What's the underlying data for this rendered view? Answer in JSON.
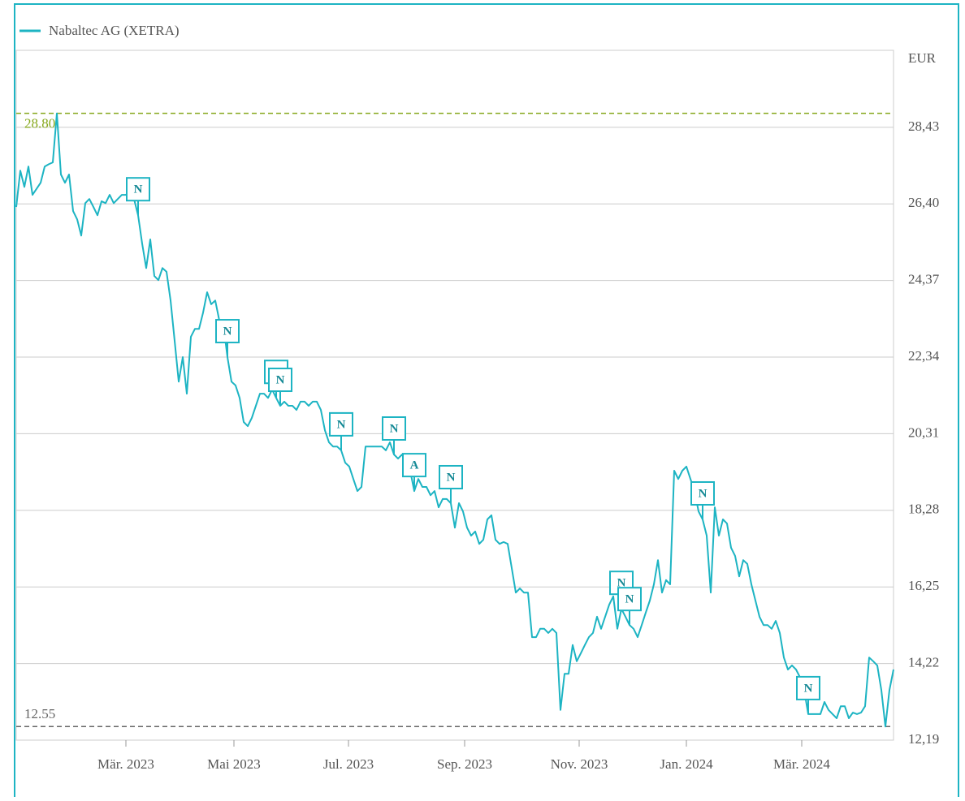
{
  "chart_data": {
    "type": "line",
    "y_unit": "EUR",
    "series": [
      {
        "name": "Nabaltec AG (XETRA)",
        "color": "#1db4c3",
        "values": [
          26.32,
          27.28,
          26.85,
          27.39,
          26.64,
          26.8,
          26.96,
          27.39,
          27.45,
          27.5,
          28.8,
          27.18,
          26.96,
          27.18,
          26.21,
          25.99,
          25.56,
          26.42,
          26.53,
          26.32,
          26.1,
          26.47,
          26.42,
          26.64,
          26.42,
          26.53,
          26.64,
          26.64,
          26.75,
          26.53,
          26.1,
          25.35,
          24.7,
          25.46,
          24.49,
          24.38,
          24.7,
          24.6,
          23.84,
          22.77,
          21.69,
          22.34,
          21.37,
          22.88,
          23.09,
          23.09,
          23.52,
          24.06,
          23.74,
          23.84,
          23.31,
          23.2,
          22.34,
          21.69,
          21.59,
          21.26,
          20.62,
          20.51,
          20.73,
          21.05,
          21.37,
          21.37,
          21.26,
          21.48,
          21.26,
          21.05,
          21.16,
          21.05,
          21.05,
          20.94,
          21.16,
          21.16,
          21.05,
          21.16,
          21.16,
          20.94,
          20.4,
          20.08,
          19.97,
          19.97,
          19.87,
          19.54,
          19.44,
          19.11,
          18.79,
          18.9,
          19.97,
          19.97,
          19.97,
          19.97,
          19.97,
          19.87,
          20.08,
          19.76,
          19.65,
          19.76,
          19.54,
          19.33,
          18.79,
          19.11,
          18.9,
          18.9,
          18.68,
          18.79,
          18.36,
          18.58,
          18.58,
          18.47,
          17.82,
          18.47,
          18.25,
          17.82,
          17.61,
          17.72,
          17.39,
          17.5,
          18.04,
          18.15,
          17.5,
          17.39,
          17.44,
          17.39,
          16.75,
          16.1,
          16.21,
          16.1,
          16.1,
          14.92,
          14.92,
          15.14,
          15.14,
          15.03,
          15.14,
          15.03,
          12.99,
          13.95,
          13.95,
          14.71,
          14.28,
          14.49,
          14.71,
          14.92,
          15.03,
          15.46,
          15.14,
          15.46,
          15.78,
          16.0,
          15.14,
          15.67,
          15.46,
          15.24,
          15.14,
          14.92,
          15.24,
          15.57,
          15.89,
          16.32,
          16.96,
          16.1,
          16.43,
          16.32,
          19.33,
          19.11,
          19.33,
          19.44,
          19.11,
          18.79,
          18.25,
          18.04,
          17.61,
          16.1,
          18.36,
          17.61,
          18.04,
          17.93,
          17.29,
          17.07,
          16.53,
          16.96,
          16.86,
          16.32,
          15.89,
          15.46,
          15.24,
          15.24,
          15.14,
          15.35,
          15.03,
          14.38,
          14.06,
          14.17,
          14.06,
          13.85,
          13.52,
          12.88,
          12.88,
          12.88,
          12.88,
          13.2,
          12.99,
          12.88,
          12.77,
          13.09,
          13.09,
          12.77,
          12.92,
          12.88,
          12.92,
          13.09,
          14.38,
          14.28,
          14.17,
          13.52,
          12.55,
          13.52,
          14.06
        ]
      }
    ],
    "xlim": [
      0,
      216
    ],
    "xticks": [
      {
        "value": 27,
        "label": "Mär. 2023"
      },
      {
        "value": 53.6,
        "label": "Mai 2023"
      },
      {
        "value": 81.8,
        "label": "Jul. 2023"
      },
      {
        "value": 110.4,
        "label": "Sep. 2023"
      },
      {
        "value": 138.6,
        "label": "Nov. 2023"
      },
      {
        "value": 165,
        "label": "Jan. 2024"
      },
      {
        "value": 193.4,
        "label": "Mär. 2024"
      }
    ],
    "ylim": [
      12.19,
      30.47
    ],
    "yticks": [
      {
        "value": 12.19,
        "label": "12,19"
      },
      {
        "value": 14.22,
        "label": "14,22"
      },
      {
        "value": 16.25,
        "label": "16,25"
      },
      {
        "value": 18.28,
        "label": "18,28"
      },
      {
        "value": 20.31,
        "label": "20,31"
      },
      {
        "value": 22.34,
        "label": "22,34"
      },
      {
        "value": 24.37,
        "label": "24,37"
      },
      {
        "value": 26.4,
        "label": "26,40"
      },
      {
        "value": 28.43,
        "label": "28,43"
      }
    ],
    "grid": true,
    "reference_lines": [
      {
        "value": 28.8,
        "label": "28.80",
        "color": "#86a81c"
      },
      {
        "value": 12.55,
        "color": "#666666"
      }
    ],
    "annotations": [
      {
        "label": "N",
        "index": 30
      },
      {
        "label": "N",
        "index": 52
      },
      {
        "label": "N",
        "index": 64
      },
      {
        "label": "N",
        "index": 65
      },
      {
        "label": "N",
        "index": 80
      },
      {
        "label": "N",
        "index": 93
      },
      {
        "label": "A",
        "index": 98
      },
      {
        "label": "N",
        "index": 107
      },
      {
        "label": "N",
        "index": 149
      },
      {
        "label": "N",
        "index": 151
      },
      {
        "label": "N",
        "index": 169
      },
      {
        "label": "N",
        "index": 195
      }
    ]
  }
}
